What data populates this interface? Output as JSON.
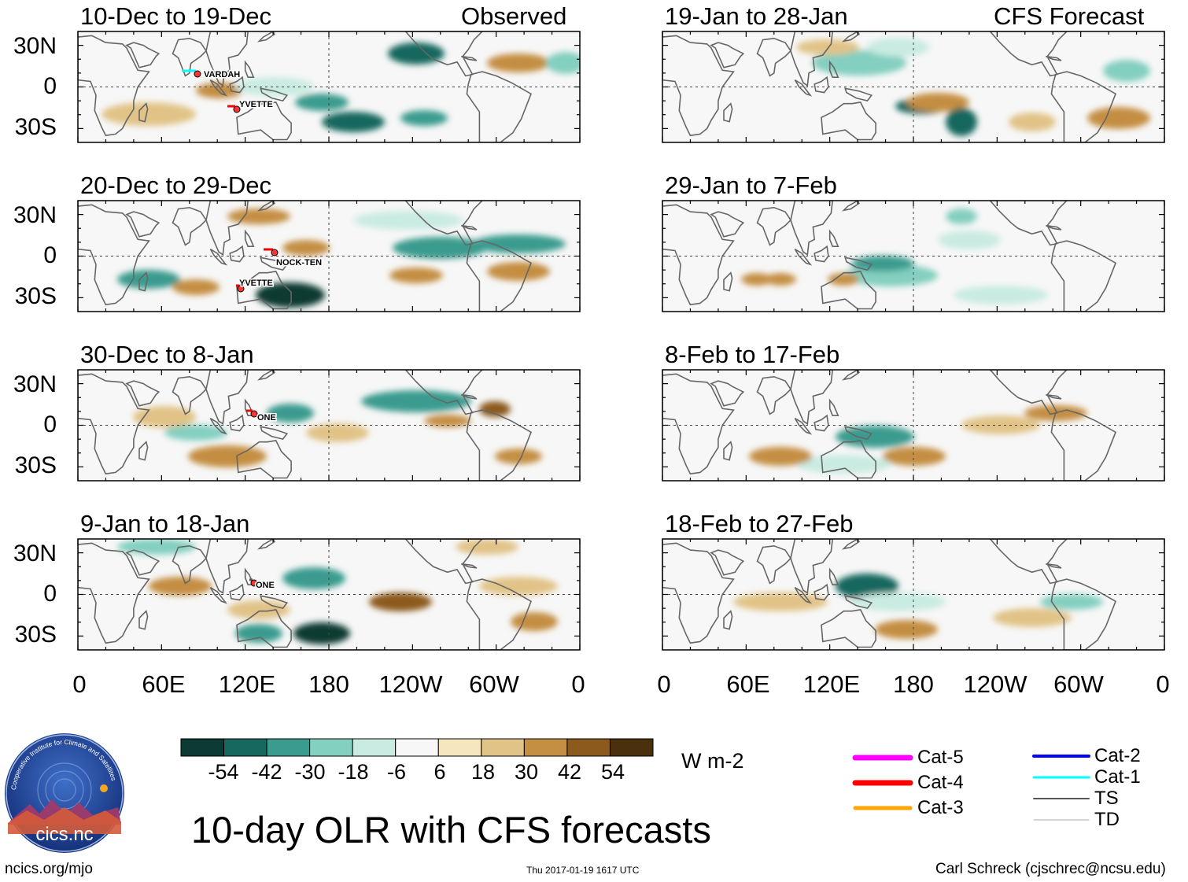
{
  "observed_label": "Observed",
  "forecast_label": "CFS Forecast",
  "left_panels": [
    {
      "period": "10-Dec to 19-Dec",
      "storms": [
        "VARDAH",
        "YVETTE"
      ]
    },
    {
      "period": "20-Dec to 29-Dec",
      "storms": [
        "NOCK-TEN",
        "YVETTE"
      ]
    },
    {
      "period": "30-Dec to 8-Jan",
      "storms": [
        "ONE"
      ]
    },
    {
      "period": "9-Jan to 18-Jan",
      "storms": [
        "ONE"
      ]
    }
  ],
  "right_panels": [
    {
      "period": "19-Jan to 28-Jan"
    },
    {
      "period": "29-Jan to 7-Feb"
    },
    {
      "period": "8-Feb to 17-Feb"
    },
    {
      "period": "18-Feb to 27-Feb"
    }
  ],
  "lat_labels": [
    "30N",
    "0",
    "30S"
  ],
  "lon_labels": [
    "0",
    "60E",
    "120E",
    "180",
    "120W",
    "60W",
    "0"
  ],
  "colorbar": {
    "colors": [
      "#0b3b33",
      "#17685f",
      "#3a9b8e",
      "#83cfc0",
      "#c9ebe2",
      "#f7f7f7",
      "#f6e6be",
      "#e1c387",
      "#c48e43",
      "#8c5a1c",
      "#4a300c"
    ],
    "ticks": [
      "-54",
      "-42",
      "-30",
      "-18",
      "-6",
      "6",
      "18",
      "30",
      "42",
      "54"
    ],
    "units": "W m-2"
  },
  "main_title": "10-day OLR with CFS forecasts",
  "logo_text": "cics.nc",
  "logo_ring_text": "Cooperative Institute for Climate and Satellites",
  "footer": {
    "left": "ncics.org/mjo",
    "center": "Thu 2017-01-19 1617 UTC",
    "right": "Carl Schreck (cjschrec@ncsu.edu)"
  },
  "storm_legend": [
    {
      "label": "Cat-5",
      "color": "#ff00ff"
    },
    {
      "label": "Cat-4",
      "color": "#ff0000"
    },
    {
      "label": "Cat-3",
      "color": "#ffa500"
    },
    {
      "label": "Cat-2",
      "color": "#0000ff"
    },
    {
      "label": "Cat-1",
      "color": "#00ffff"
    },
    {
      "label": "TS",
      "color": "#555555"
    },
    {
      "label": "TD",
      "color": "#aaaaaa"
    }
  ]
}
